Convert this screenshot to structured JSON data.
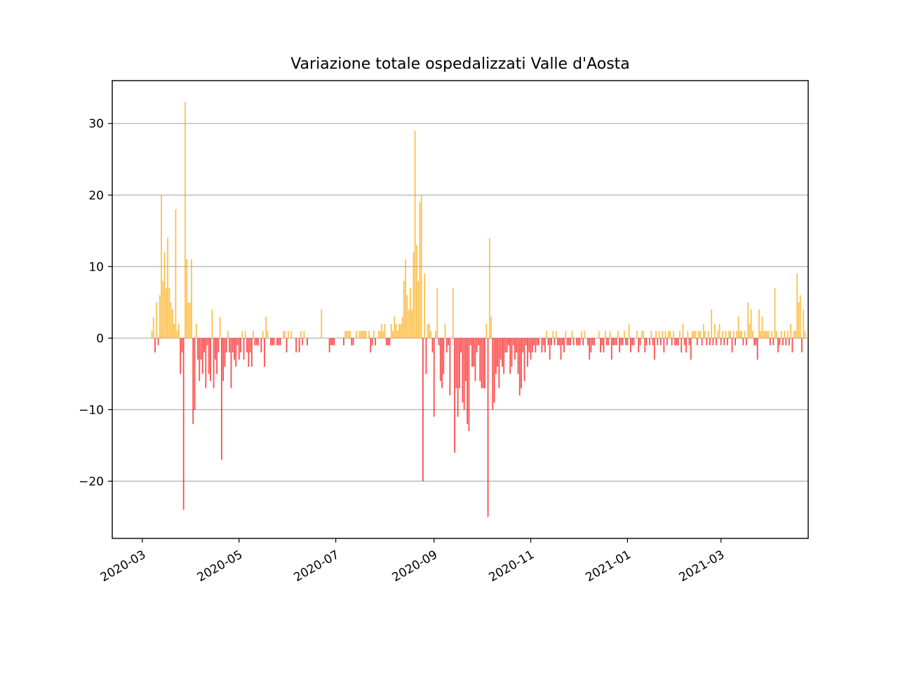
{
  "chart_data": {
    "type": "bar",
    "title": "Variazione totale ospedalizzati Valle d'Aosta",
    "xlabel": "",
    "ylabel": "",
    "ylim": [
      -28,
      36
    ],
    "xlim": [
      "2020-02-11",
      "2021-04-25"
    ],
    "grid": "horizontal",
    "legend": "none",
    "colors": {
      "positive": "#FFA500",
      "negative": "#FF0000",
      "zero_line": "#b0b0b0"
    },
    "y_ticks": [
      -20,
      -10,
      0,
      10,
      20,
      30
    ],
    "y_tick_labels": [
      "−20",
      "−10",
      "0",
      "10",
      "20",
      "30"
    ],
    "x_ticks": [
      "2020-03-01",
      "2020-05-01",
      "2020-07-01",
      "2020-09-01",
      "2020-11-01",
      "2021-01-01",
      "2021-03-01"
    ],
    "x_tick_labels": [
      "2020-03",
      "2020-05",
      "2020-07",
      "2020-09",
      "2020-11",
      "2021-01",
      "2021-03"
    ],
    "series": [
      {
        "start_date": "2020-03-07",
        "values": [
          1,
          3,
          -2,
          5,
          -1,
          6,
          20,
          8,
          12,
          7,
          14,
          7,
          5,
          4,
          2,
          18,
          1,
          2,
          -5,
          -2,
          -24,
          33,
          11,
          5,
          5,
          11,
          -12,
          -10,
          2,
          -3,
          -6,
          -3,
          -5,
          -2,
          -7,
          -1,
          -5,
          -6,
          4,
          -7,
          -3,
          -5,
          -2,
          3,
          -17,
          -6,
          -4,
          -2,
          1,
          -2,
          -7,
          -2,
          -3,
          -4,
          -1,
          -3,
          -2,
          1,
          -3,
          1,
          -2,
          -4,
          -2,
          -4,
          1,
          -1,
          -1,
          -1,
          0,
          -2,
          1,
          -4,
          3,
          1,
          0,
          -1,
          -1,
          -1,
          0,
          -1,
          -1,
          -1,
          0,
          1,
          1,
          -2,
          1,
          0,
          1,
          0,
          0,
          -2,
          0,
          -2,
          1,
          -1,
          1,
          0,
          -1,
          0,
          0,
          0,
          0,
          0,
          0,
          0,
          0,
          4,
          0,
          0,
          0,
          0,
          -2,
          -1,
          -1,
          -1,
          0,
          0,
          0,
          0,
          0,
          -1,
          1,
          1,
          1,
          1,
          -1,
          -1,
          0,
          1,
          0,
          1,
          1,
          1,
          1,
          1,
          0,
          1,
          -2,
          -1,
          1,
          -1,
          0,
          1,
          1,
          2,
          1,
          2,
          -1,
          -1,
          -1,
          2,
          1,
          3,
          2,
          1,
          2,
          2,
          3,
          8,
          11,
          6,
          4,
          7,
          4,
          12,
          29,
          13,
          8,
          19,
          20,
          -20,
          9,
          -5,
          2,
          2,
          1,
          -2,
          -11,
          1,
          7,
          -1,
          -6,
          -7,
          -5,
          2,
          -2,
          -1,
          -8,
          0,
          7,
          -16,
          -7,
          -11,
          -7,
          -2,
          -9,
          -10,
          -6,
          -12,
          -13,
          -1,
          -4,
          -4,
          -6,
          -2,
          -1,
          -6,
          -7,
          -7,
          -7,
          2,
          -25,
          14,
          3,
          -10,
          -9,
          -5,
          -4,
          -7,
          -3,
          -4,
          -5,
          -2,
          -2,
          -1,
          -5,
          -4,
          -1,
          -3,
          -2,
          -5,
          -8,
          -7,
          -2,
          -6,
          -1,
          -4,
          -2,
          -3,
          -2,
          -1,
          -2,
          -1,
          -1,
          0,
          -2,
          -1,
          -2,
          1,
          -1,
          -3,
          -1,
          1,
          -1,
          1,
          -1,
          -1,
          -3,
          -1,
          -2,
          1,
          -1,
          -1,
          -1,
          1,
          -1,
          0,
          -1,
          -1,
          -1,
          1,
          -1,
          1,
          0,
          -1,
          -3,
          -2,
          -1,
          -1,
          0,
          0,
          1,
          -2,
          -1,
          -2,
          1,
          -1,
          -1,
          1,
          -3,
          -1,
          -1,
          -1,
          1,
          -2,
          -1,
          -1,
          1,
          -1,
          -1,
          2,
          -2,
          -1,
          -1,
          0,
          1,
          -2,
          -1,
          1,
          1,
          -2,
          -1,
          0,
          -1,
          1,
          -1,
          -3,
          1,
          -1,
          1,
          -1,
          1,
          -2,
          1,
          -1,
          1,
          1,
          -1,
          1,
          -1,
          -1,
          -1,
          1,
          -2,
          2,
          -1,
          -2,
          1,
          -1,
          -3,
          1,
          1,
          1,
          -1,
          1,
          1,
          -1,
          2,
          1,
          -1,
          1,
          -1,
          4,
          -1,
          2,
          -1,
          1,
          2,
          -1,
          1,
          -1,
          1,
          -1,
          1,
          1,
          -2,
          1,
          -1,
          1,
          3,
          1,
          1,
          -1,
          1,
          -1,
          5,
          2,
          4,
          1,
          -1,
          -1,
          -3,
          4,
          1,
          3,
          1,
          1,
          1,
          1,
          -1,
          1,
          -1,
          7,
          1,
          -2,
          -1,
          1,
          -1,
          1,
          -1,
          1,
          -1,
          2,
          -2,
          1,
          1,
          9,
          5,
          6,
          -2,
          4,
          1
        ]
      }
    ]
  }
}
